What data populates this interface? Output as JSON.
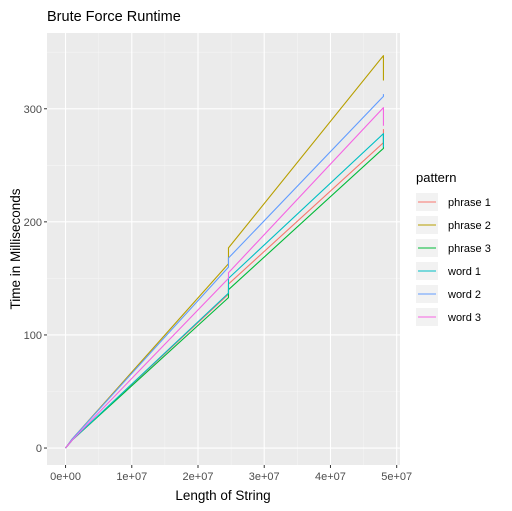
{
  "chart_data": {
    "type": "line",
    "title": "Brute Force Runtime",
    "xlabel": "Length of String",
    "ylabel": "Time in Milliseconds",
    "xlim": [
      -2800000,
      50500000
    ],
    "ylim": [
      -15,
      367
    ],
    "x_ticks": [
      0,
      10000000,
      20000000,
      30000000,
      40000000,
      50000000
    ],
    "x_tick_labels": [
      "0e+00",
      "1e+07",
      "2e+07",
      "3e+07",
      "4e+07",
      "5e+07"
    ],
    "y_ticks": [
      0,
      100,
      200,
      300
    ],
    "y_tick_labels": [
      "0",
      "100",
      "200",
      "300"
    ],
    "grid": true,
    "background": "#ebebeb",
    "legend": {
      "title": "pattern",
      "position": "right"
    },
    "series": [
      {
        "name": "phrase 1",
        "color": "#F8766D",
        "points": [
          [
            0,
            0
          ],
          [
            1000000,
            7
          ],
          [
            24600000,
            136
          ],
          [
            24600000,
            145
          ],
          [
            48000000,
            270
          ],
          [
            48000000,
            282
          ]
        ]
      },
      {
        "name": "phrase 2",
        "color": "#B79F00",
        "points": [
          [
            0,
            0
          ],
          [
            1000000,
            8
          ],
          [
            24600000,
            163
          ],
          [
            24600000,
            177
          ],
          [
            48000000,
            347
          ],
          [
            48000000,
            325
          ]
        ]
      },
      {
        "name": "phrase 3",
        "color": "#00BA38",
        "points": [
          [
            0,
            0
          ],
          [
            1000000,
            7
          ],
          [
            24600000,
            133
          ],
          [
            24600000,
            140
          ],
          [
            48000000,
            265
          ],
          [
            48000000,
            278
          ]
        ]
      },
      {
        "name": "word 1",
        "color": "#00BFC4",
        "points": [
          [
            0,
            0
          ],
          [
            1000000,
            7
          ],
          [
            24600000,
            137
          ],
          [
            24600000,
            150
          ],
          [
            48000000,
            278
          ],
          [
            48000000,
            266
          ]
        ]
      },
      {
        "name": "word 2",
        "color": "#619CFF",
        "points": [
          [
            0,
            0
          ],
          [
            1000000,
            8
          ],
          [
            24600000,
            160
          ],
          [
            24600000,
            168
          ],
          [
            48000000,
            311
          ],
          [
            48000000,
            313
          ]
        ]
      },
      {
        "name": "word 3",
        "color": "#F564E3",
        "points": [
          [
            0,
            0
          ],
          [
            1000000,
            7
          ],
          [
            24600000,
            150
          ],
          [
            24600000,
            155
          ],
          [
            48000000,
            301
          ],
          [
            48000000,
            285
          ]
        ]
      }
    ]
  }
}
